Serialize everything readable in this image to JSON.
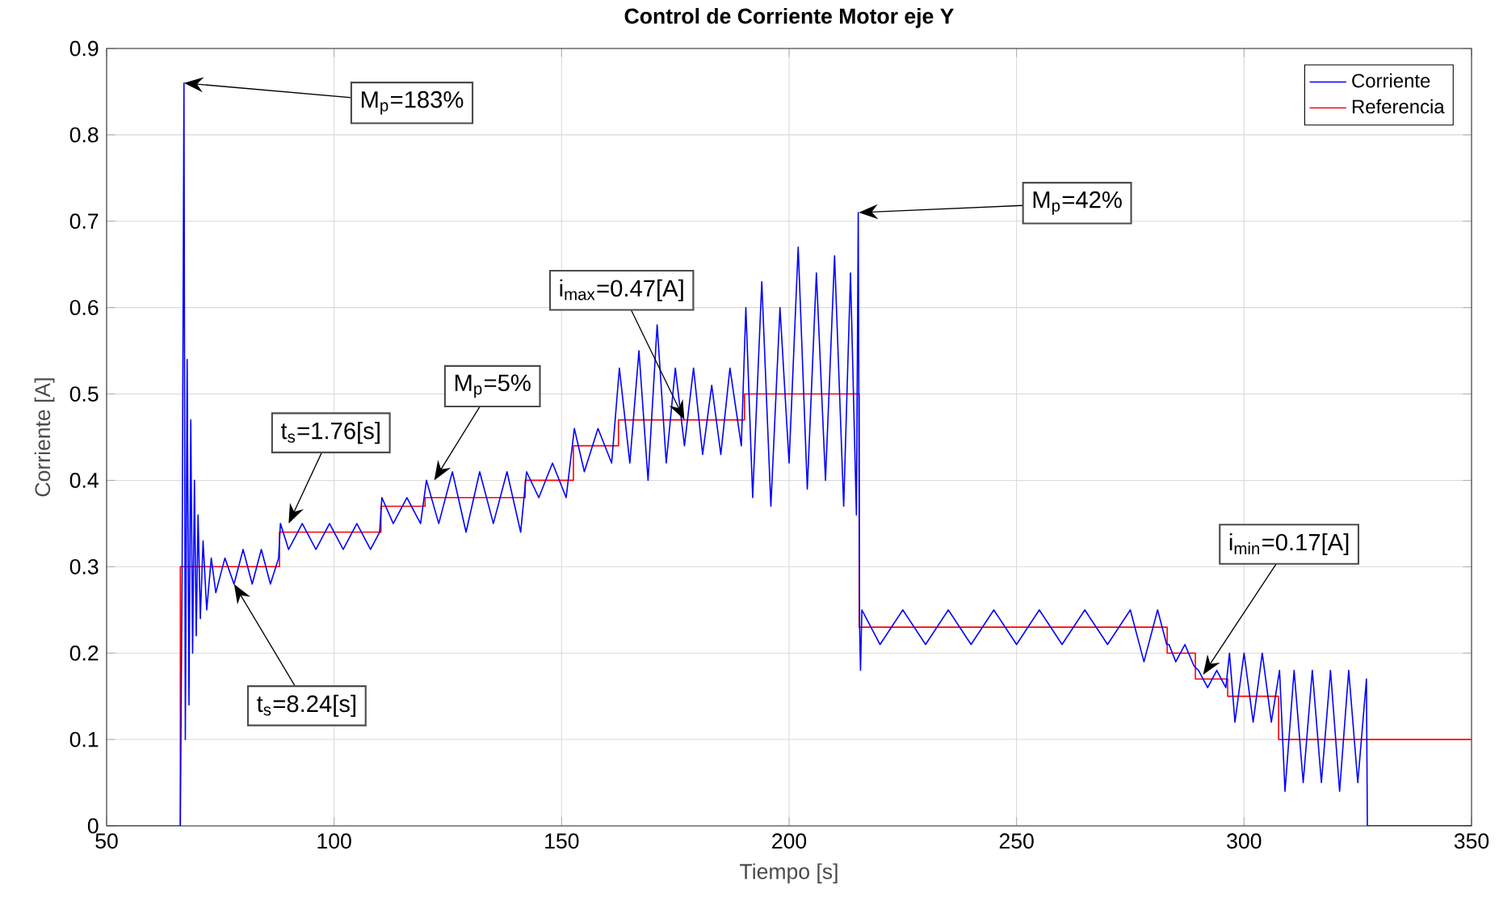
{
  "chart_data": {
    "type": "line",
    "title": "Control de Corriente Motor eje Y",
    "xlabel": "Tiempo [s]",
    "ylabel": "Corriente [A]",
    "xlim": [
      50,
      350
    ],
    "ylim": [
      0,
      0.9
    ],
    "xticks": [
      50,
      100,
      150,
      200,
      250,
      300,
      350
    ],
    "yticks": [
      0,
      0.1,
      0.2,
      0.3,
      0.4,
      0.5,
      0.6,
      0.7,
      0.8,
      0.9
    ],
    "grid": true,
    "legend": "top right",
    "marker": "none",
    "line_style": "solid",
    "series": [
      {
        "name": "Corriente",
        "color": "#0000ff",
        "x": [
          66.2,
          66.6,
          67.0,
          67.3,
          67.7,
          68.1,
          68.5,
          68.9,
          69.3,
          69.7,
          70.1,
          70.6,
          71.2,
          72,
          73,
          74,
          76,
          78,
          80,
          82,
          84,
          86,
          87.8,
          88.2,
          90,
          93,
          96,
          99,
          102,
          105,
          108,
          110,
          110.5,
          113,
          116,
          119,
          120.3,
          123,
          126,
          129,
          132,
          135,
          138,
          141,
          142.3,
          145,
          148,
          151,
          152.8,
          155,
          158,
          161,
          162.7,
          165,
          167,
          169,
          171,
          173,
          175,
          177,
          179,
          181,
          183,
          185,
          187,
          189.5,
          190.5,
          192,
          194,
          196,
          198,
          200,
          202,
          204,
          206,
          208,
          210,
          212,
          213.5,
          214.8,
          215.2,
          215.5,
          215.7,
          216,
          220,
          225,
          230,
          235,
          240,
          245,
          250,
          255,
          260,
          265,
          270,
          275,
          278,
          281,
          283,
          283.5,
          285,
          287,
          289,
          290,
          292,
          294,
          296,
          296.8,
          298,
          300,
          302,
          304,
          306,
          307.8,
          309,
          311,
          313,
          315,
          317,
          319,
          321,
          323,
          325,
          326.9,
          327.1,
          350
        ],
        "values": [
          0,
          0.3,
          0.86,
          0.1,
          0.54,
          0.14,
          0.47,
          0.2,
          0.4,
          0.22,
          0.36,
          0.24,
          0.33,
          0.25,
          0.31,
          0.27,
          0.31,
          0.28,
          0.32,
          0.28,
          0.32,
          0.28,
          0.31,
          0.35,
          0.32,
          0.35,
          0.32,
          0.35,
          0.32,
          0.35,
          0.32,
          0.34,
          0.38,
          0.35,
          0.38,
          0.35,
          0.4,
          0.35,
          0.41,
          0.34,
          0.41,
          0.35,
          0.41,
          0.34,
          0.41,
          0.38,
          0.42,
          0.38,
          0.46,
          0.41,
          0.46,
          0.42,
          0.53,
          0.42,
          0.55,
          0.4,
          0.58,
          0.42,
          0.53,
          0.44,
          0.53,
          0.43,
          0.51,
          0.43,
          0.53,
          0.44,
          0.6,
          0.38,
          0.63,
          0.37,
          0.6,
          0.42,
          0.67,
          0.39,
          0.64,
          0.4,
          0.66,
          0.37,
          0.64,
          0.36,
          0.71,
          0.23,
          0.18,
          0.25,
          0.21,
          0.25,
          0.21,
          0.25,
          0.21,
          0.25,
          0.21,
          0.25,
          0.21,
          0.25,
          0.21,
          0.25,
          0.19,
          0.25,
          0.21,
          0.21,
          0.19,
          0.21,
          0.185,
          0.18,
          0.16,
          0.18,
          0.16,
          0.2,
          0.12,
          0.2,
          0.12,
          0.2,
          0.12,
          0.18,
          0.04,
          0.18,
          0.05,
          0.18,
          0.05,
          0.18,
          0.04,
          0.18,
          0.05,
          0.17,
          0,
          0
        ]
      },
      {
        "name": "Referencia",
        "color": "#ff0000",
        "type": "step",
        "x": [
          50,
          66.2,
          88,
          110.3,
          120,
          142,
          152.6,
          162.5,
          190.2,
          215.4,
          283.1,
          289.3,
          296.4,
          307.6,
          350
        ],
        "values": [
          0,
          0.3,
          0.34,
          0.37,
          0.38,
          0.4,
          0.44,
          0.47,
          0.5,
          0.23,
          0.2,
          0.17,
          0.15,
          0.1,
          0.1
        ]
      }
    ],
    "annotations": [
      {
        "text": "M$_{p}$=183%",
        "x": 67.0,
        "y": 0.86
      },
      {
        "text": "t$_{s}$=1.76[s]",
        "x": 90,
        "y": 0.35
      },
      {
        "text": "M$_{p}$=5%",
        "x": 122,
        "y": 0.4
      },
      {
        "text": "i$_{max}$=0.47[A]",
        "x": 177,
        "y": 0.47
      },
      {
        "text": "M$_{p}$=42%",
        "x": 215.3,
        "y": 0.71
      },
      {
        "text": "i$_{min}$=0.17[A]",
        "x": 291,
        "y": 0.175
      },
      {
        "text": "t$_{s}$=8.24[s]",
        "x": 78,
        "y": 0.28
      }
    ]
  }
}
